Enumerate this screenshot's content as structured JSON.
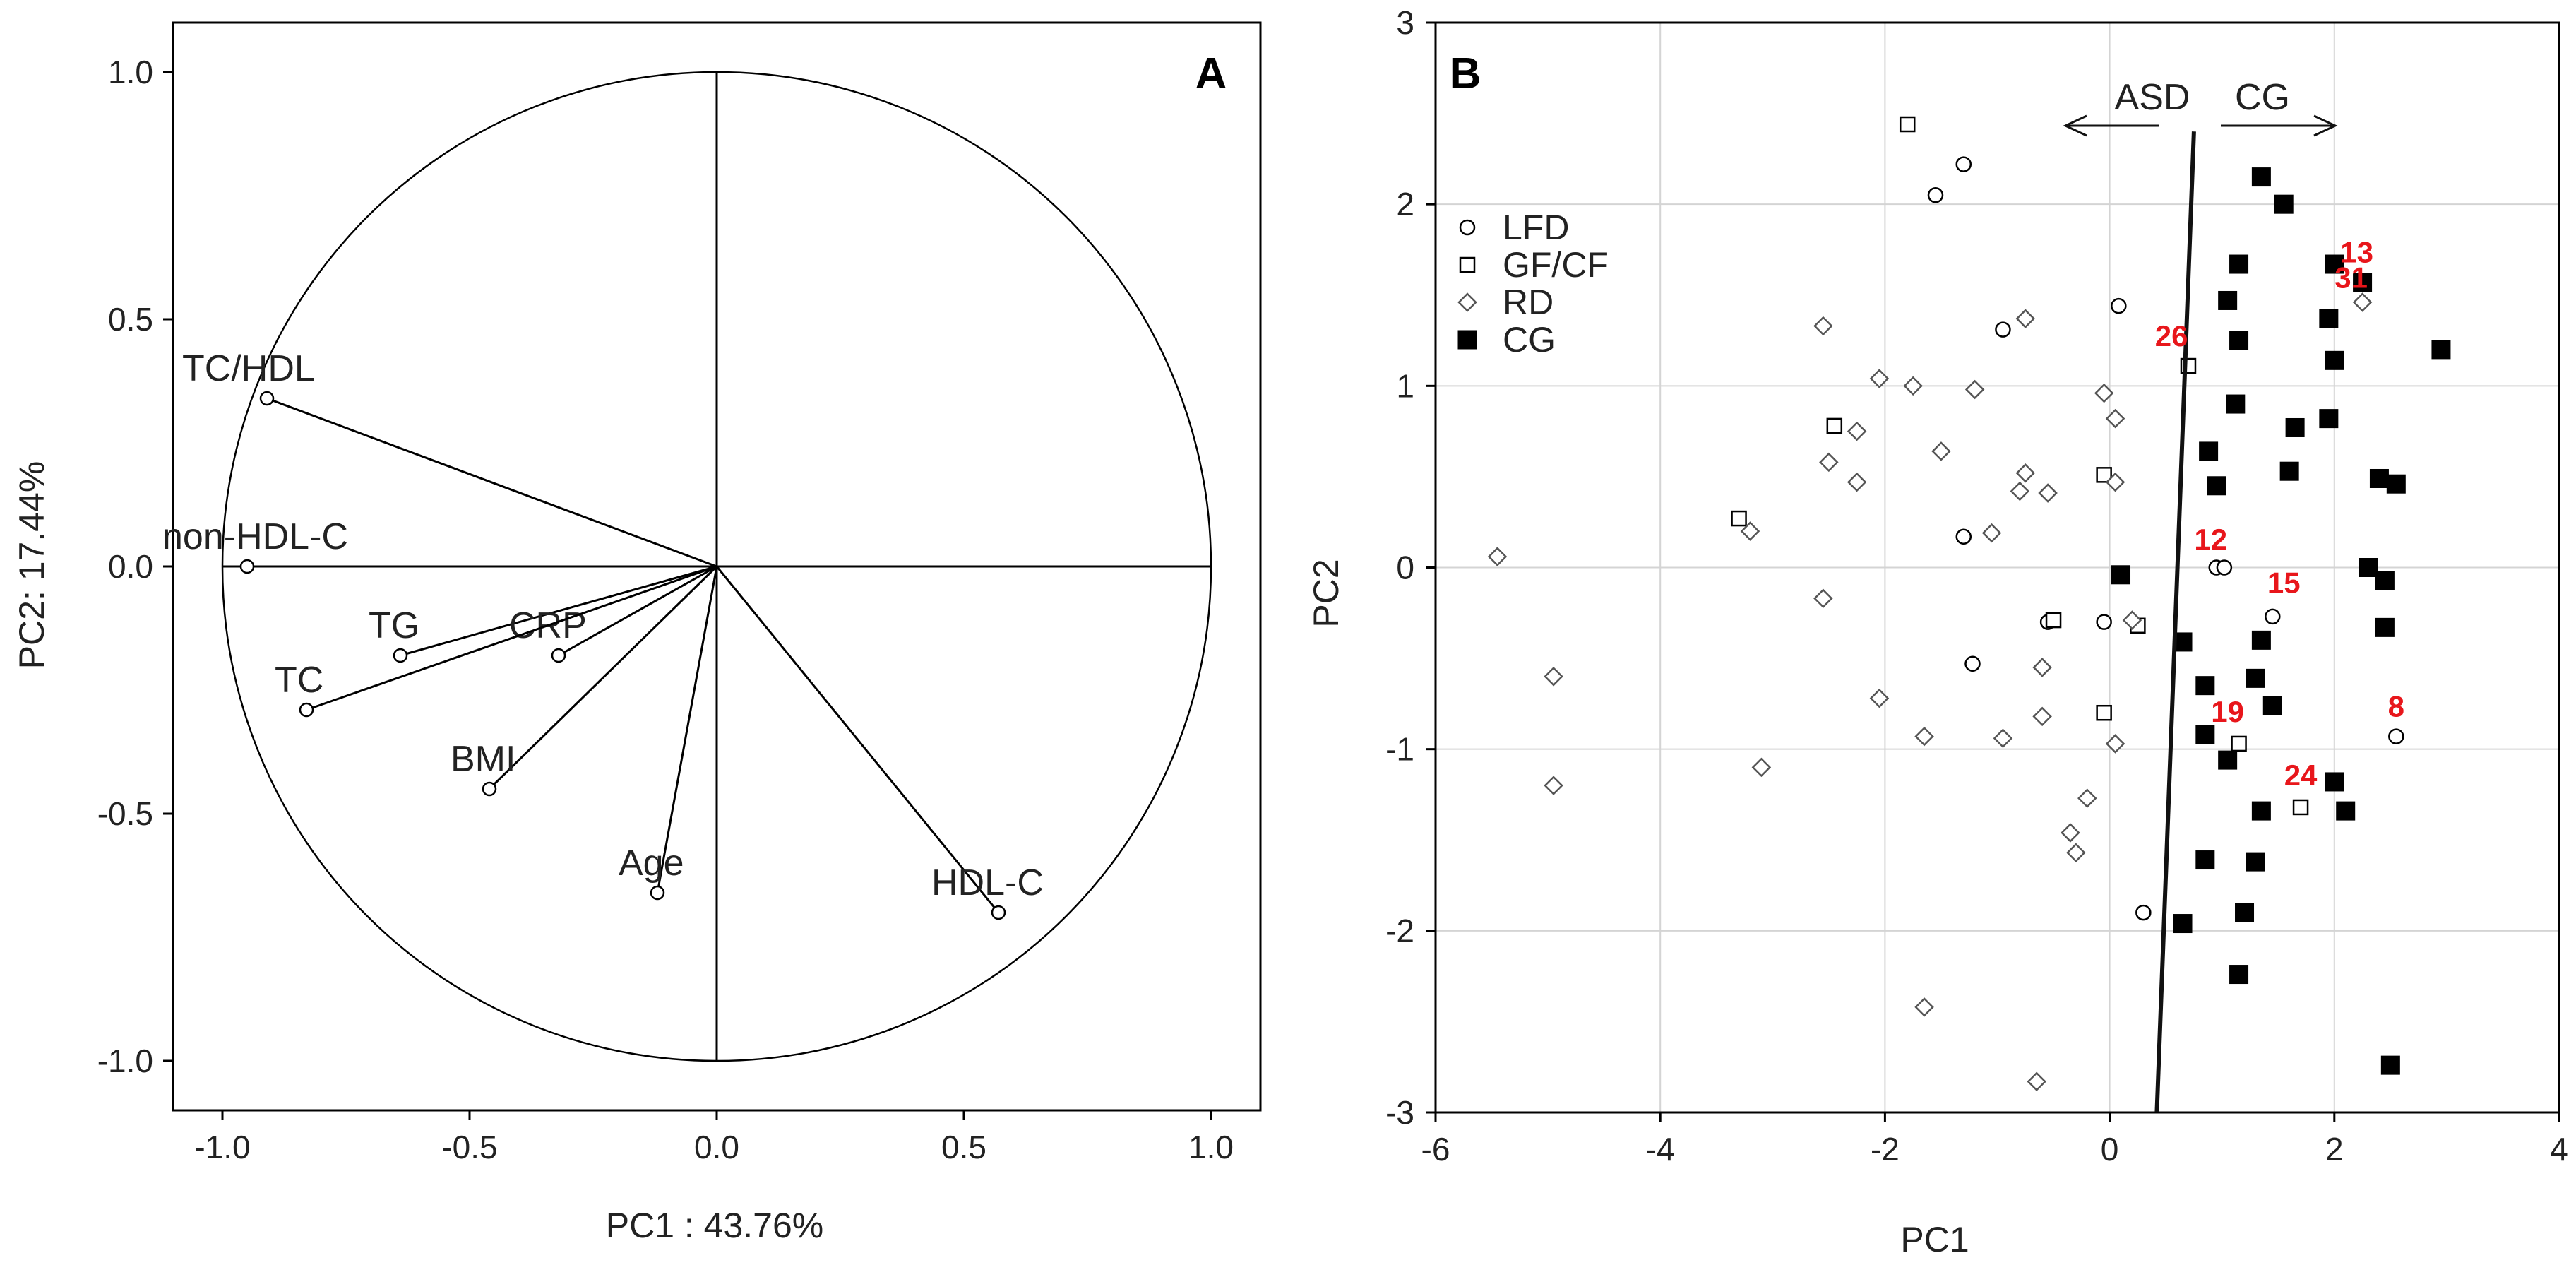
{
  "colors": {
    "axis": "#000000",
    "grid": "#d4d4d4",
    "annotation": "#e8161b",
    "text": "#222222"
  },
  "chart_data": [
    {
      "type": "scatter",
      "panel_label": "A",
      "xlabel": "PC1 : 43.76%",
      "ylabel": "PC2: 17.44%",
      "xlim": [
        -1.1,
        1.1
      ],
      "ylim": [
        -1.1,
        1.1
      ],
      "xticks": [
        "-1.0",
        "-0.5",
        "0.0",
        "0.5",
        "1.0"
      ],
      "xtick_values": [
        -1,
        -0.5,
        0,
        0.5,
        1
      ],
      "yticks": [
        "1.0",
        "0.5",
        "0.0",
        "-0.5",
        "-1.0"
      ],
      "ytick_values": [
        1,
        0.5,
        0,
        -0.5,
        -1
      ],
      "unit_circle": true,
      "variables": [
        {
          "name": "TC/HDL",
          "x": -0.91,
          "y": 0.34
        },
        {
          "name": "non-HDL-C",
          "x": -0.95,
          "y": 0.0
        },
        {
          "name": "TG",
          "x": -0.64,
          "y": -0.18
        },
        {
          "name": "CRP",
          "x": -0.32,
          "y": -0.18
        },
        {
          "name": "TC",
          "x": -0.83,
          "y": -0.29
        },
        {
          "name": "BMI",
          "x": -0.46,
          "y": -0.45
        },
        {
          "name": "Age",
          "x": -0.12,
          "y": -0.66
        },
        {
          "name": "HDL-C",
          "x": 0.57,
          "y": -0.7
        }
      ]
    },
    {
      "type": "scatter",
      "panel_label": "B",
      "xlabel": "PC1",
      "ylabel": "PC2",
      "xlim": [
        -6,
        4
      ],
      "ylim": [
        -3,
        3
      ],
      "xticks": [
        "-6",
        "-4",
        "-2",
        "0",
        "2",
        "4"
      ],
      "xtick_values": [
        -6,
        -4,
        -2,
        0,
        2,
        4
      ],
      "yticks": [
        "3",
        "2",
        "1",
        "0",
        "-1",
        "-2",
        "-3"
      ],
      "ytick_values": [
        3,
        2,
        1,
        0,
        -1,
        -2,
        -3
      ],
      "grid": true,
      "divider": {
        "x_top": 0.75,
        "y_top": 2.4,
        "x_bottom": 0.42,
        "y_bottom": -3
      },
      "arrows": [
        {
          "label": "ASD",
          "direction": "left"
        },
        {
          "label": "CG",
          "direction": "right"
        }
      ],
      "legend": {
        "position": "top-left",
        "entries": [
          {
            "name": "LFD",
            "marker": "circle"
          },
          {
            "name": "GF/CF",
            "marker": "square-open"
          },
          {
            "name": "RD",
            "marker": "diamond"
          },
          {
            "name": "CG",
            "marker": "square-filled"
          }
        ]
      },
      "series": [
        {
          "name": "LFD",
          "marker": "circle",
          "points": [
            [
              -1.3,
              2.22
            ],
            [
              -1.55,
              2.05
            ],
            [
              0.08,
              1.44
            ],
            [
              -0.95,
              1.31
            ],
            [
              -1.3,
              0.17
            ],
            [
              0.95,
              0.0
            ],
            [
              1.02,
              0.0
            ],
            [
              -1.22,
              -0.53
            ],
            [
              -0.05,
              -0.3
            ],
            [
              1.45,
              -0.27
            ],
            [
              2.55,
              -0.93
            ],
            [
              -0.55,
              -0.3
            ],
            [
              0.3,
              -1.9
            ]
          ]
        },
        {
          "name": "GF/CF",
          "marker": "square-open",
          "points": [
            [
              -1.8,
              2.44
            ],
            [
              -3.3,
              0.27
            ],
            [
              -2.45,
              0.78
            ],
            [
              -0.05,
              0.51
            ],
            [
              -0.5,
              -0.29
            ],
            [
              0.25,
              -0.32
            ],
            [
              -0.05,
              -0.8
            ],
            [
              1.15,
              -0.97
            ],
            [
              1.7,
              -1.32
            ],
            [
              0.7,
              1.11
            ]
          ]
        },
        {
          "name": "RD",
          "marker": "diamond",
          "points": [
            [
              -5.45,
              0.06
            ],
            [
              -4.95,
              -0.6
            ],
            [
              -4.95,
              -1.2
            ],
            [
              -3.2,
              0.2
            ],
            [
              -3.1,
              -1.1
            ],
            [
              -2.55,
              1.33
            ],
            [
              -2.5,
              0.58
            ],
            [
              -2.25,
              0.75
            ],
            [
              -2.25,
              0.47
            ],
            [
              -2.05,
              1.04
            ],
            [
              -1.75,
              1.0
            ],
            [
              -1.5,
              0.64
            ],
            [
              -2.55,
              -0.17
            ],
            [
              -2.05,
              -0.72
            ],
            [
              -1.65,
              -0.93
            ],
            [
              -1.2,
              0.98
            ],
            [
              -1.05,
              0.19
            ],
            [
              -0.95,
              -0.94
            ],
            [
              -0.8,
              0.42
            ],
            [
              -0.75,
              0.52
            ],
            [
              -0.75,
              1.37
            ],
            [
              -0.55,
              0.41
            ],
            [
              -0.6,
              -0.55
            ],
            [
              -0.6,
              -0.82
            ],
            [
              -0.2,
              -1.27
            ],
            [
              -0.35,
              -1.46
            ],
            [
              -0.3,
              -1.57
            ],
            [
              0.05,
              0.47
            ],
            [
              0.05,
              0.82
            ],
            [
              -0.05,
              0.96
            ],
            [
              0.05,
              -0.97
            ],
            [
              0.2,
              -0.29
            ],
            [
              -1.65,
              -2.42
            ],
            [
              -0.65,
              -2.83
            ],
            [
              2.25,
              1.46
            ]
          ]
        },
        {
          "name": "CG",
          "marker": "square-filled",
          "points": [
            [
              1.35,
              2.15
            ],
            [
              1.55,
              2.0
            ],
            [
              1.15,
              1.67
            ],
            [
              2.0,
              1.67
            ],
            [
              1.05,
              1.47
            ],
            [
              1.95,
              1.37
            ],
            [
              2.25,
              1.57
            ],
            [
              1.15,
              1.25
            ],
            [
              2.0,
              1.14
            ],
            [
              2.95,
              1.2
            ],
            [
              1.12,
              0.9
            ],
            [
              1.95,
              0.82
            ],
            [
              1.65,
              0.77
            ],
            [
              0.88,
              0.64
            ],
            [
              1.6,
              0.53
            ],
            [
              0.95,
              0.45
            ],
            [
              2.4,
              0.49
            ],
            [
              2.55,
              0.46
            ],
            [
              0.1,
              -0.04
            ],
            [
              2.3,
              0.0
            ],
            [
              2.45,
              -0.07
            ],
            [
              0.65,
              -0.41
            ],
            [
              1.35,
              -0.4
            ],
            [
              2.45,
              -0.33
            ],
            [
              0.85,
              -0.65
            ],
            [
              1.3,
              -0.61
            ],
            [
              1.45,
              -0.76
            ],
            [
              0.85,
              -0.92
            ],
            [
              1.05,
              -1.06
            ],
            [
              2.0,
              -1.18
            ],
            [
              1.35,
              -1.34
            ],
            [
              2.1,
              -1.34
            ],
            [
              0.85,
              -1.61
            ],
            [
              1.3,
              -1.62
            ],
            [
              1.2,
              -1.9
            ],
            [
              0.65,
              -1.96
            ],
            [
              1.15,
              -2.24
            ],
            [
              2.5,
              -2.74
            ]
          ]
        }
      ],
      "annotations": [
        {
          "text": "13",
          "x": 2.2,
          "y": 1.68
        },
        {
          "text": "31",
          "x": 2.15,
          "y": 1.54
        },
        {
          "text": "26",
          "x": 0.55,
          "y": 1.22
        },
        {
          "text": "12",
          "x": 0.9,
          "y": 0.1
        },
        {
          "text": "15",
          "x": 1.55,
          "y": -0.14
        },
        {
          "text": "19",
          "x": 1.05,
          "y": -0.85
        },
        {
          "text": "8",
          "x": 2.55,
          "y": -0.82
        },
        {
          "text": "24",
          "x": 1.7,
          "y": -1.2
        }
      ]
    }
  ]
}
